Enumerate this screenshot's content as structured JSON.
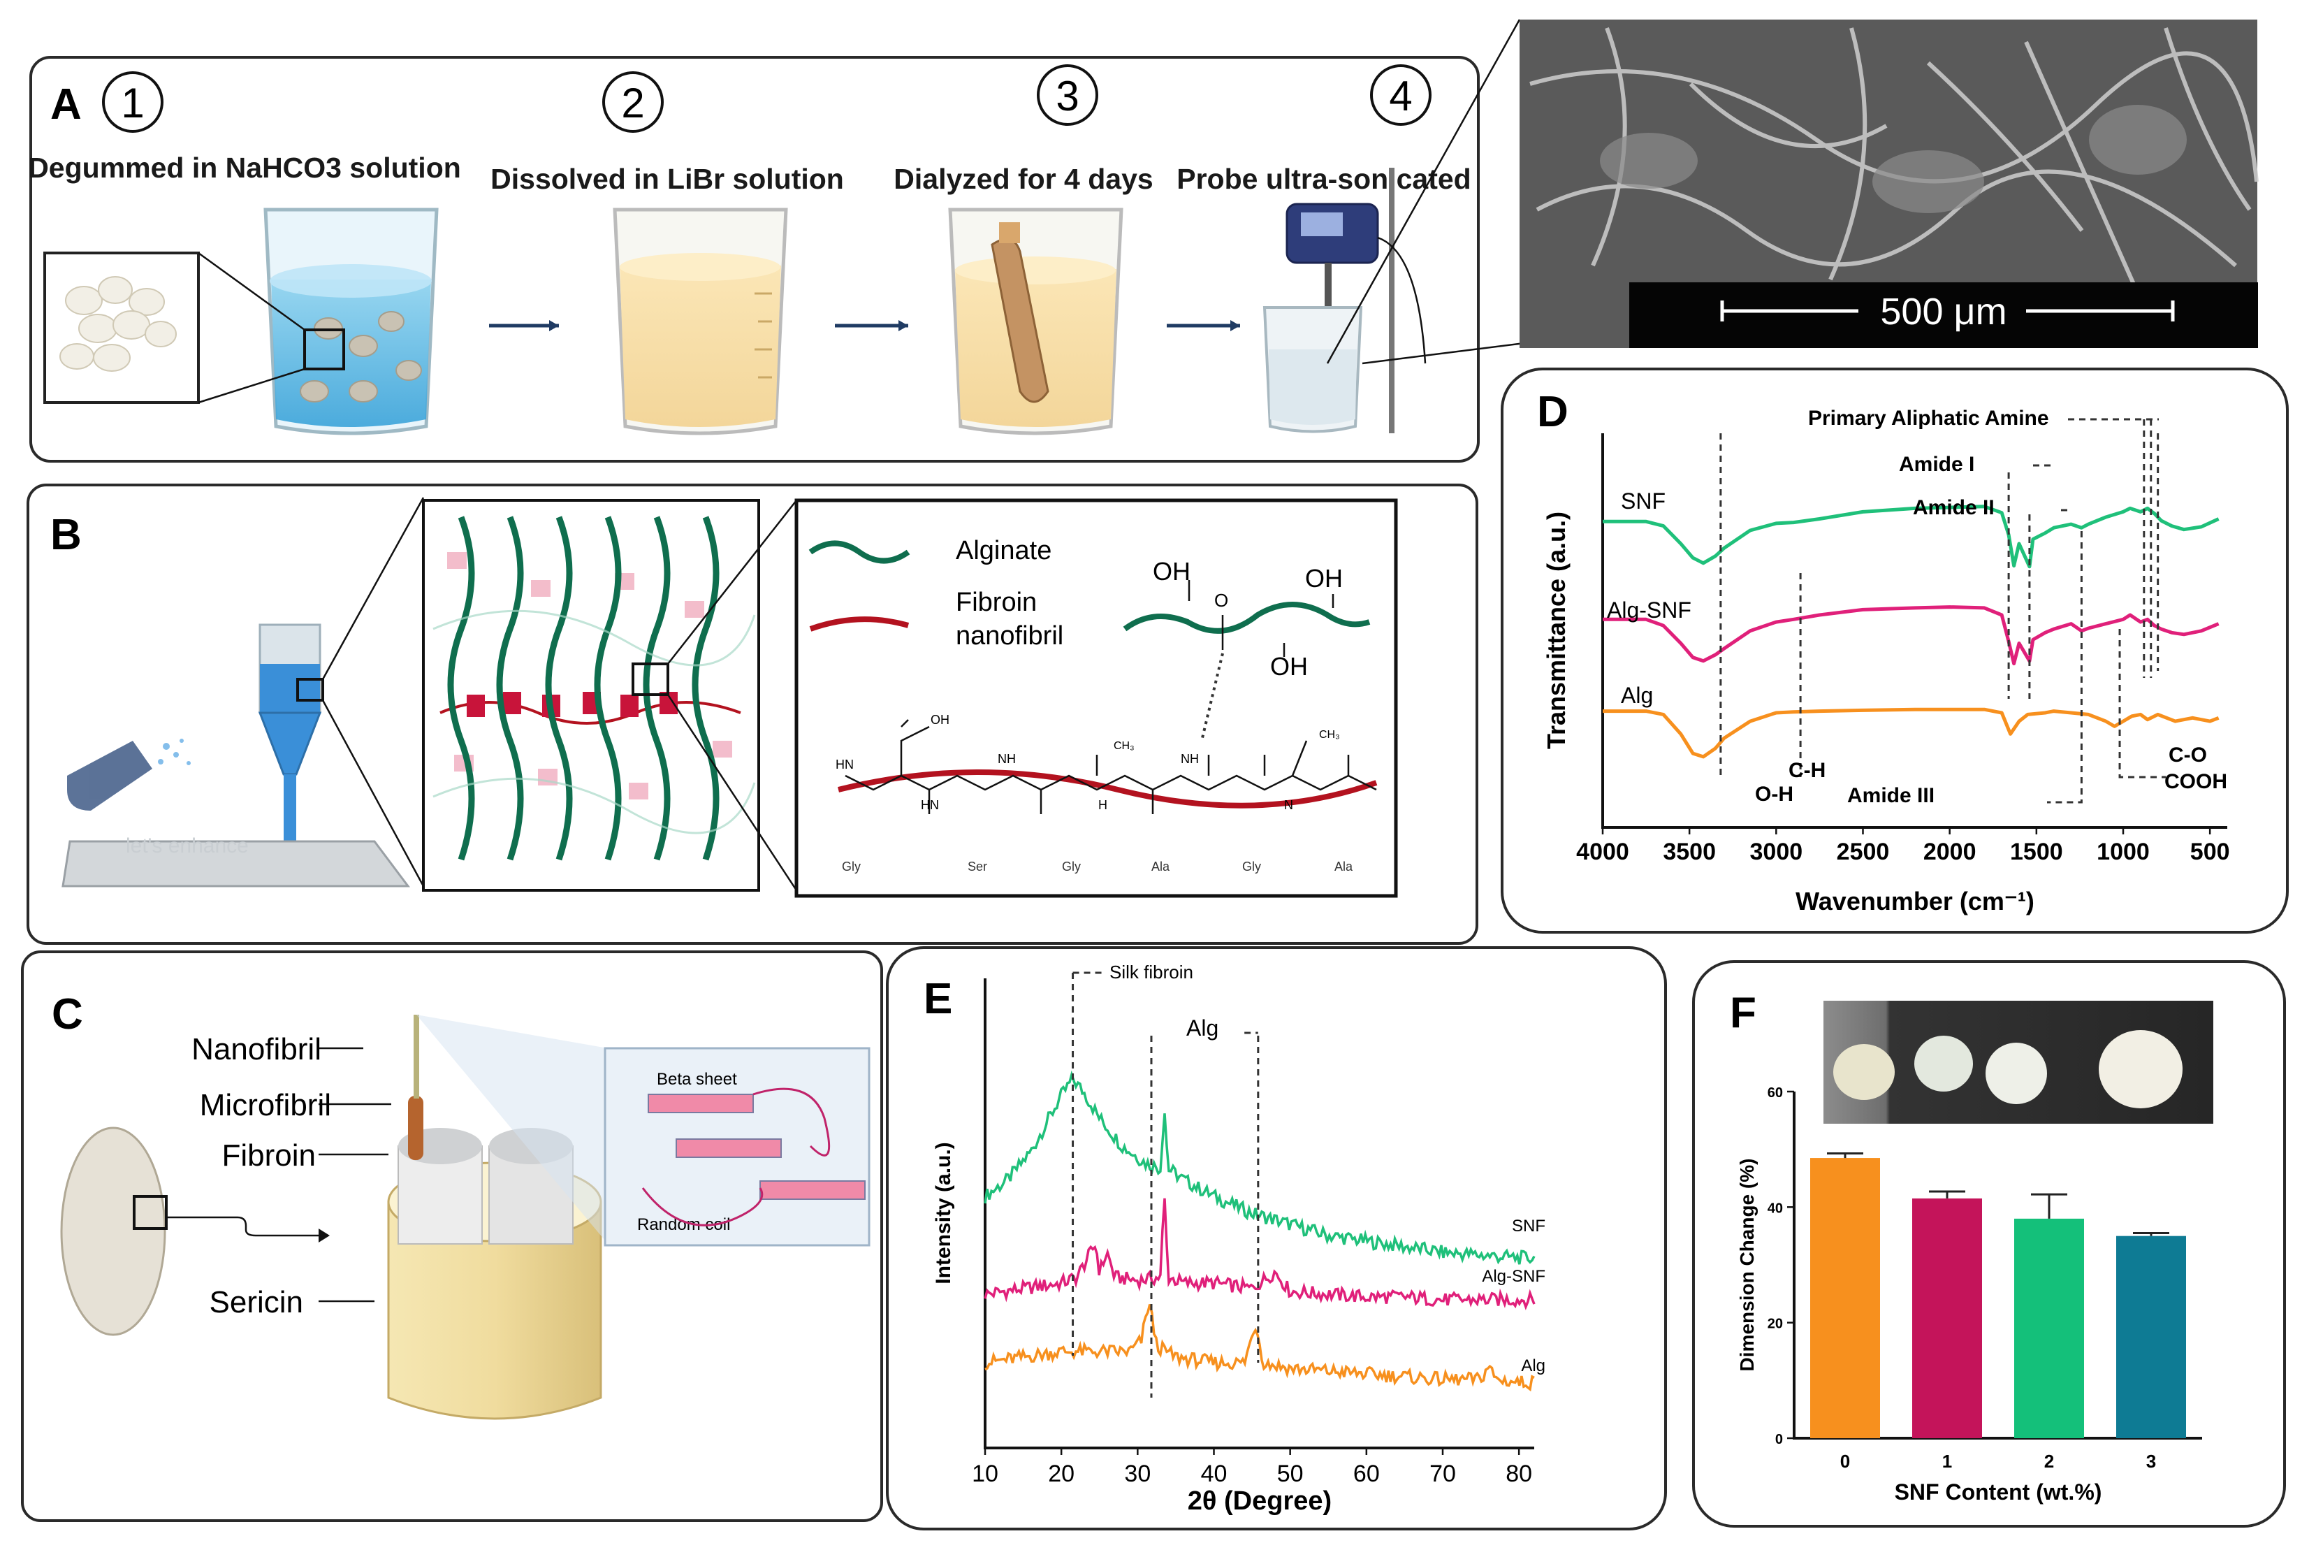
{
  "panels": {
    "A": {
      "letter": "A",
      "steps": [
        {
          "num": "1",
          "label": "Degummed in NaHCO3 solution"
        },
        {
          "num": "2",
          "label": "Dissolved in LiBr solution"
        },
        {
          "num": "3",
          "label": "Dialyzed for 4 days"
        },
        {
          "num": "4",
          "label": "Probe ultra-sonicated"
        }
      ],
      "scale_bar": "500 μm"
    },
    "B": {
      "letter": "B",
      "legend_alginate": "Alginate",
      "legend_fibroin_1": "Fibroin",
      "legend_fibroin_2": "nanofibril",
      "oh_labels": [
        "OH",
        "OH",
        "OH"
      ],
      "chem_o": "O",
      "chem_oh_small": "OH",
      "chem_nh": [
        "NH",
        "NH"
      ],
      "chem_hn": [
        "HN",
        "HN",
        "H",
        "N"
      ],
      "chem_ch3": [
        "CH₃",
        "CH₃"
      ],
      "residues": [
        "Gly",
        "Ser",
        "Gly",
        "Ala",
        "Gly",
        "Ala"
      ],
      "watermark": "let's enhance"
    },
    "C": {
      "letter": "C",
      "labels": [
        "Nanofibril",
        "Microfibril",
        "Fibroin",
        "Sericin"
      ],
      "beta_sheet": "Beta sheet",
      "random_coil": "Random coil"
    },
    "D": {
      "letter": "D",
      "annotations": {
        "primary_amine": "Primary Aliphatic Amine",
        "amide1": "Amide I",
        "amide2": "Amide II",
        "amide3": "Amide III",
        "ch": "C-H",
        "oh": "O-H",
        "co": "C-O",
        "cooh": "COOH"
      }
    },
    "E": {
      "letter": "E",
      "silk_fibroin": "Silk fibroin",
      "alg": "Alg"
    },
    "F": {
      "letter": "F"
    }
  },
  "colors": {
    "snf": "#1fc07a",
    "alg_snf": "#e0207a",
    "alg": "#f7901e",
    "bar0": "#f7901e",
    "bar1": "#c4145a",
    "bar2": "#14c07a",
    "bar3": "#0e7b94",
    "alginate": "#0f6e4e",
    "fibroin": "#b3121f"
  },
  "chart_data": [
    {
      "id": "D",
      "type": "line",
      "title": "",
      "xlabel": "Wavenumber (cm⁻¹)",
      "ylabel": "Transmittance (a.u.)",
      "xlim": [
        4000,
        400
      ],
      "xticks": [
        "4000",
        "3500",
        "3000",
        "2500",
        "2000",
        "1500",
        "1000",
        "500"
      ],
      "series": [
        {
          "name": "SNF",
          "x": [
            4000,
            3750,
            3650,
            3550,
            3480,
            3420,
            3350,
            3300,
            3150,
            3000,
            2900,
            2750,
            2500,
            2200,
            2000,
            1800,
            1700,
            1660,
            1630,
            1600,
            1540,
            1520,
            1450,
            1400,
            1300,
            1240,
            1200,
            1100,
            1000,
            960,
            900,
            860,
            820,
            780,
            720,
            650,
            550,
            450
          ],
          "y": [
            0.55,
            0.55,
            0.5,
            0.3,
            0.14,
            0.08,
            0.16,
            0.25,
            0.45,
            0.53,
            0.54,
            0.58,
            0.66,
            0.7,
            0.71,
            0.72,
            0.65,
            0.4,
            0.05,
            0.3,
            0.04,
            0.35,
            0.42,
            0.48,
            0.52,
            0.48,
            0.52,
            0.6,
            0.66,
            0.7,
            0.66,
            0.7,
            0.64,
            0.56,
            0.5,
            0.46,
            0.49,
            0.58
          ]
        },
        {
          "name": "Alg-SNF",
          "x": [
            4000,
            3750,
            3650,
            3550,
            3480,
            3420,
            3350,
            3300,
            3150,
            3000,
            2900,
            2750,
            2500,
            2200,
            2000,
            1800,
            1700,
            1660,
            1630,
            1600,
            1540,
            1520,
            1450,
            1400,
            1300,
            1240,
            1200,
            1100,
            1000,
            960,
            900,
            860,
            820,
            780,
            720,
            650,
            550,
            450
          ],
          "y": [
            0.55,
            0.55,
            0.48,
            0.28,
            0.12,
            0.08,
            0.15,
            0.22,
            0.42,
            0.52,
            0.55,
            0.6,
            0.66,
            0.68,
            0.69,
            0.68,
            0.6,
            0.3,
            0.05,
            0.28,
            0.08,
            0.32,
            0.4,
            0.44,
            0.5,
            0.42,
            0.45,
            0.5,
            0.55,
            0.6,
            0.52,
            0.55,
            0.48,
            0.44,
            0.4,
            0.38,
            0.42,
            0.5
          ]
        },
        {
          "name": "Alg",
          "x": [
            4000,
            3750,
            3650,
            3550,
            3480,
            3420,
            3350,
            3300,
            3150,
            3000,
            2900,
            2750,
            2500,
            2200,
            2000,
            1800,
            1700,
            1650,
            1600,
            1550,
            1450,
            1400,
            1300,
            1200,
            1100,
            1050,
            1000,
            950,
            900,
            860,
            800,
            700,
            600,
            500,
            450
          ],
          "y": [
            0.62,
            0.62,
            0.58,
            0.35,
            0.12,
            0.08,
            0.18,
            0.3,
            0.5,
            0.6,
            0.61,
            0.62,
            0.63,
            0.64,
            0.64,
            0.64,
            0.6,
            0.35,
            0.5,
            0.58,
            0.6,
            0.62,
            0.6,
            0.58,
            0.5,
            0.44,
            0.5,
            0.56,
            0.58,
            0.52,
            0.58,
            0.5,
            0.54,
            0.5,
            0.54
          ]
        }
      ]
    },
    {
      "id": "E",
      "type": "line",
      "title": "",
      "xlabel": "2θ (Degree)",
      "ylabel": "Intensity (a.u.)",
      "xlim": [
        10,
        82
      ],
      "xticks": [
        "10",
        "20",
        "30",
        "40",
        "50",
        "60",
        "70",
        "80"
      ],
      "series": [
        {
          "name": "SNF",
          "x": [
            10,
            13,
            16,
            18,
            20,
            21.5,
            23,
            25,
            28,
            31,
            33,
            33.5,
            34,
            36,
            40,
            45,
            50,
            55,
            60,
            65,
            70,
            75,
            80,
            82
          ],
          "y": [
            0.58,
            0.64,
            0.74,
            0.84,
            0.94,
            1.0,
            0.95,
            0.86,
            0.76,
            0.7,
            0.68,
            0.9,
            0.68,
            0.64,
            0.58,
            0.52,
            0.48,
            0.44,
            0.42,
            0.4,
            0.38,
            0.37,
            0.36,
            0.36
          ]
        },
        {
          "name": "Alg-SNF",
          "x": [
            10,
            15,
            20,
            22,
            24.5,
            25,
            26,
            27,
            30,
            33,
            33.5,
            34,
            36,
            40,
            45,
            48,
            50,
            55,
            60,
            65,
            70,
            75,
            80,
            82
          ],
          "y": [
            0.32,
            0.34,
            0.36,
            0.38,
            0.5,
            0.4,
            0.47,
            0.38,
            0.37,
            0.38,
            0.68,
            0.38,
            0.36,
            0.36,
            0.34,
            0.4,
            0.33,
            0.32,
            0.31,
            0.31,
            0.3,
            0.3,
            0.3,
            0.3
          ]
        },
        {
          "name": "Alg",
          "x": [
            10,
            15,
            20,
            25,
            29,
            30.5,
            31.5,
            32.5,
            35,
            40,
            44,
            45.5,
            46.5,
            50,
            55,
            60,
            65,
            70,
            75,
            76,
            77,
            80,
            82
          ],
          "y": [
            0.1,
            0.12,
            0.14,
            0.14,
            0.14,
            0.18,
            0.32,
            0.16,
            0.12,
            0.1,
            0.1,
            0.24,
            0.1,
            0.08,
            0.07,
            0.06,
            0.05,
            0.04,
            0.04,
            0.09,
            0.04,
            0.03,
            0.03
          ]
        }
      ],
      "annotations": [
        "Silk fibroin",
        "Alg"
      ]
    },
    {
      "id": "F",
      "type": "bar",
      "title": "",
      "xlabel": "SNF Content (wt.%)",
      "ylabel": "Dimension Change (%)",
      "ylim": [
        0,
        60
      ],
      "yticks": [
        "0",
        "20",
        "40",
        "60"
      ],
      "categories": [
        "0",
        "1",
        "2",
        "3"
      ],
      "values": [
        48.5,
        41.5,
        38,
        35
      ],
      "errors": [
        0.8,
        1.2,
        4.2,
        0.5
      ]
    }
  ]
}
